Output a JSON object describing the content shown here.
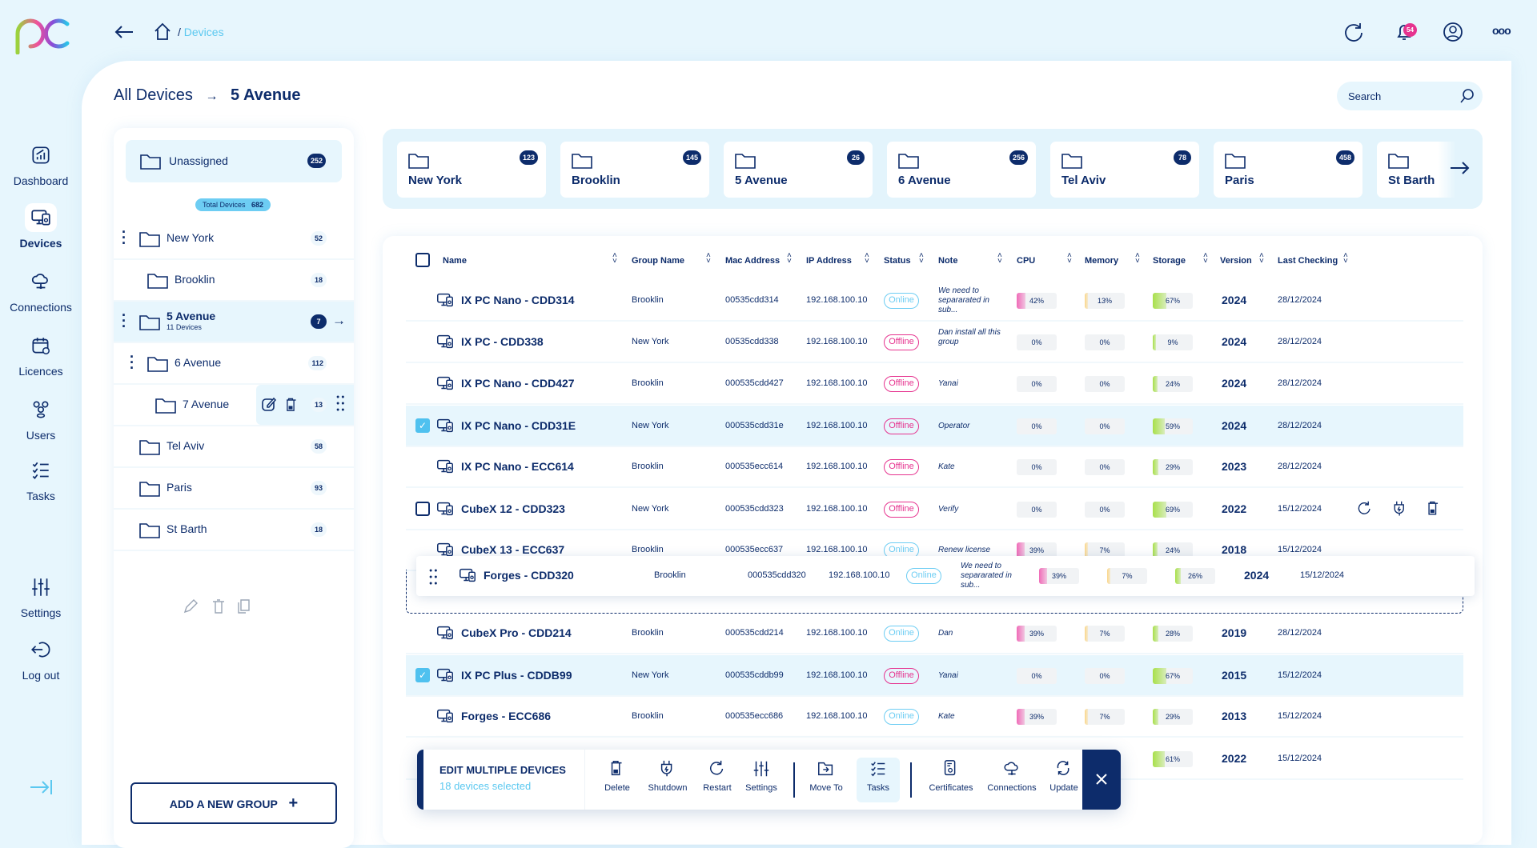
{
  "sidebar": {
    "items": [
      {
        "label": "Dashboard",
        "icon": "dashboard-icon"
      },
      {
        "label": "Devices",
        "icon": "devices-icon",
        "active": true
      },
      {
        "label": "Connections",
        "icon": "cloud-icon"
      },
      {
        "label": "Licences",
        "icon": "calendar-icon"
      },
      {
        "label": "Users",
        "icon": "users-icon"
      },
      {
        "label": "Tasks",
        "icon": "tasks-icon"
      },
      {
        "label": "Settings",
        "icon": "sliders-icon"
      },
      {
        "label": "Log out",
        "icon": "logout-icon"
      }
    ]
  },
  "header": {
    "breadcrumb_sep": "/",
    "breadcrumb": "Devices",
    "notifications": "54"
  },
  "page": {
    "root": "All Devices",
    "current": "5 Avenue",
    "search_placeholder": "Search"
  },
  "groups": {
    "unassigned": {
      "label": "Unassigned",
      "count": "252"
    },
    "total_label": "Total Devices",
    "total": "682",
    "items": [
      {
        "name": "New York",
        "count": "52"
      },
      {
        "name": "Brooklin",
        "count": "18"
      },
      {
        "name": "5 Avenue",
        "sub": "11 Devices",
        "count": "7"
      },
      {
        "name": "6 Avenue",
        "count": "112"
      },
      {
        "name": "7 Avenue",
        "count": "13"
      },
      {
        "name": "Tel Aviv",
        "count": "58"
      },
      {
        "name": "Paris",
        "count": "93"
      },
      {
        "name": "St Barth",
        "count": "18"
      }
    ],
    "add_label": "ADD A NEW GROUP"
  },
  "cards": [
    {
      "name": "New York",
      "count": "123"
    },
    {
      "name": "Brooklin",
      "count": "145"
    },
    {
      "name": "5 Avenue",
      "count": "26"
    },
    {
      "name": "6 Avenue",
      "count": "256"
    },
    {
      "name": "Tel Aviv",
      "count": "78"
    },
    {
      "name": "Paris",
      "count": "458"
    },
    {
      "name": "St Barth",
      "count": ""
    }
  ],
  "table": {
    "columns": [
      "Name",
      "Group Name",
      "Mac Address",
      "IP Address",
      "Status",
      "Note",
      "CPU",
      "Memory",
      "Storage",
      "Version",
      "Last Checking"
    ],
    "rows": [
      {
        "name": "IX PC Nano - CDD314",
        "group": "Brooklin",
        "mac": "00535cdd314",
        "ip": "192.168.100.10",
        "status": "Online",
        "note": "We need to separarated in sub...",
        "cpu": 42,
        "mem": 13,
        "sto": 67,
        "ver": "2024",
        "last": "28/12/2024"
      },
      {
        "name": "IX PC - CDD338",
        "group": "New York",
        "mac": "00535cdd338",
        "ip": "192.168.100.10",
        "status": "Offline",
        "note": "Dan install all this group",
        "cpu": 0,
        "mem": 0,
        "sto": 9,
        "ver": "2024",
        "last": "28/12/2024"
      },
      {
        "name": "IX PC Nano - CDD427",
        "group": "Brooklin",
        "mac": "000535cdd427",
        "ip": "192.168.100.10",
        "status": "Offline",
        "note": "Yanai",
        "cpu": 0,
        "mem": 0,
        "sto": 24,
        "ver": "2024",
        "last": "28/12/2024"
      },
      {
        "name": "IX PC Nano - CDD31E",
        "group": "New York",
        "mac": "000535cdd31e",
        "ip": "192.168.100.10",
        "status": "Offline",
        "note": "Operator",
        "cpu": 0,
        "mem": 0,
        "sto": 59,
        "ver": "2024",
        "last": "28/12/2024",
        "checked": true
      },
      {
        "name": "IX PC Nano - ECC614",
        "group": "Brooklin",
        "mac": "000535ecc614",
        "ip": "192.168.100.10",
        "status": "Offline",
        "note": "Kate",
        "cpu": 0,
        "mem": 0,
        "sto": 29,
        "ver": "2023",
        "last": "28/12/2024"
      },
      {
        "name": "CubeX 12 - CDD323",
        "group": "New York",
        "mac": "000535cdd323",
        "ip": "192.168.100.10",
        "status": "Offline",
        "note": "Verify",
        "cpu": 0,
        "mem": 0,
        "sto": 69,
        "ver": "2022",
        "last": "15/12/2024",
        "checked": false,
        "hover": true
      },
      {
        "name": "CubeX 13 - ECC637",
        "group": "Brooklin",
        "mac": "000535ecc637",
        "ip": "192.168.100.10",
        "status": "Online",
        "note": "Renew license",
        "cpu": 39,
        "mem": 7,
        "sto": 24,
        "ver": "2018",
        "last": "15/12/2024"
      },
      {
        "name": "CubeX Pro - CDD214",
        "group": "Brooklin",
        "mac": "000535cdd214",
        "ip": "192.168.100.10",
        "status": "Online",
        "note": "Dan",
        "cpu": 39,
        "mem": 7,
        "sto": 28,
        "ver": "2019",
        "last": "28/12/2024"
      },
      {
        "name": "IX PC Plus - CDDB99",
        "group": "New York",
        "mac": "000535cddb99",
        "ip": "192.168.100.10",
        "status": "Offline",
        "note": "Yanai",
        "cpu": 0,
        "mem": 0,
        "sto": 67,
        "ver": "2015",
        "last": "15/12/2024",
        "checked": true
      },
      {
        "name": "Forges - ECC686",
        "group": "Brooklin",
        "mac": "000535ecc686",
        "ip": "192.168.100.10",
        "status": "Online",
        "note": "Kate",
        "cpu": 39,
        "mem": 7,
        "sto": 29,
        "ver": "2013",
        "last": "15/12/2024"
      },
      {
        "sto": 61,
        "ver": "2022",
        "last": "15/12/2024",
        "partial": true
      }
    ],
    "dragged": {
      "name": "Forges - CDD320",
      "group": "Brooklin",
      "mac": "000535cdd320",
      "ip": "192.168.100.10",
      "status": "Online",
      "note": "We need to separarated in sub...",
      "cpu": 39,
      "mem": 7,
      "sto": 26,
      "ver": "2024",
      "last": "15/12/2024"
    }
  },
  "toolbar": {
    "title": "EDIT MULTIPLE DEVICES",
    "subtitle": "18 devices selected",
    "actions": [
      "Delete",
      "Shutdown",
      "Restart",
      "Settings",
      "Move To",
      "Tasks",
      "Certificates",
      "Connections",
      "Update"
    ],
    "active": "Tasks"
  },
  "colors": {
    "navy": "#0d2c6b",
    "accent": "#4fc1ef",
    "online": "#6dcdf3",
    "offline": "#e6338f",
    "cpu": "#f06bb8",
    "memory": "#fbd78a",
    "storage": "#a8e04a"
  }
}
